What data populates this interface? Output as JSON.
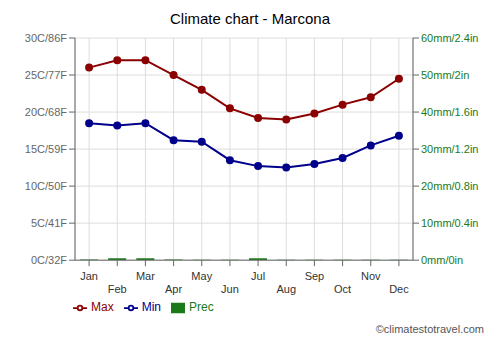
{
  "chart_data": {
    "type": "combo",
    "title": "Climate chart - Marcona",
    "categories": [
      "Jan",
      "Feb",
      "Mar",
      "Apr",
      "May",
      "Jun",
      "Jul",
      "Aug",
      "Sep",
      "Oct",
      "Nov",
      "Dec"
    ],
    "series": [
      {
        "name": "Prec",
        "type": "bar",
        "axis": "y2",
        "color": "#1a7a1a",
        "values": [
          0.2,
          0.5,
          0.5,
          0.2,
          0.1,
          0.1,
          0.5,
          0.1,
          0.1,
          0.1,
          0.1,
          0.1
        ]
      },
      {
        "name": "Min",
        "type": "line",
        "color": "#00008B",
        "marker": "circle",
        "values": [
          18.5,
          18.2,
          18.5,
          16.2,
          16.0,
          13.5,
          12.7,
          12.5,
          13.0,
          13.8,
          15.5,
          16.8
        ]
      },
      {
        "name": "Max",
        "type": "line",
        "color": "#8B0000",
        "marker": "circle",
        "values": [
          26.0,
          27.0,
          27.0,
          25.0,
          23.0,
          20.5,
          19.2,
          19.0,
          19.8,
          21.0,
          22.0,
          24.5
        ]
      }
    ],
    "ylim": [
      0,
      30
    ],
    "yticks": [
      {
        "value": 0,
        "label": "0C/32F"
      },
      {
        "value": 5,
        "label": "5C/41F"
      },
      {
        "value": 10,
        "label": "10C/50F"
      },
      {
        "value": 15,
        "label": "15C/59F"
      },
      {
        "value": 20,
        "label": "20C/68F"
      },
      {
        "value": 25,
        "label": "25C/77F"
      },
      {
        "value": 30,
        "label": "30C/86F"
      }
    ],
    "y2lim": [
      0,
      60
    ],
    "y2ticks": [
      {
        "value": 0,
        "label": "0mm/0in"
      },
      {
        "value": 10,
        "label": "10mm/0.4in"
      },
      {
        "value": 20,
        "label": "20mm/0.8in"
      },
      {
        "value": 30,
        "label": "30mm/1.2in"
      },
      {
        "value": 40,
        "label": "40mm/1.6in"
      },
      {
        "value": 50,
        "label": "50mm/2in"
      },
      {
        "value": 60,
        "label": "60mm/2.4in"
      }
    ],
    "grid": true,
    "legend": "lower left",
    "annotations": [
      "©climatestotravel.com"
    ]
  }
}
